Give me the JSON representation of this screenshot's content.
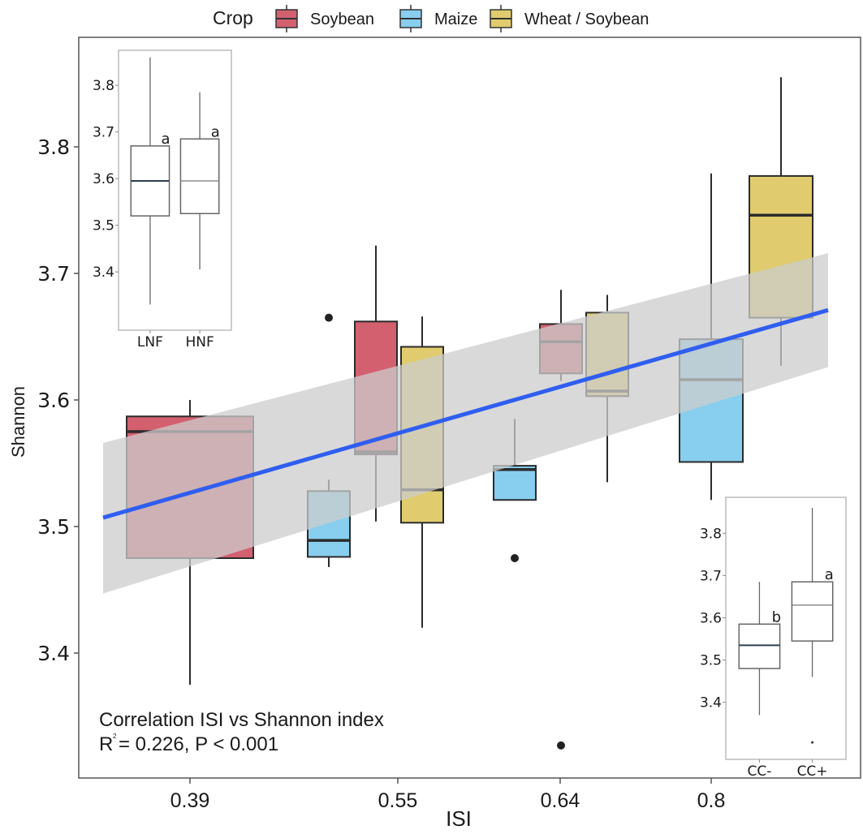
{
  "chart_data": {
    "type": "box",
    "title": "",
    "xlabel": "ISI",
    "ylabel": "Shannon",
    "ylim": [
      3.335,
      3.88
    ],
    "yticks": [
      3.4,
      3.5,
      3.6,
      3.7,
      3.8
    ],
    "ytick_labels": [
      "3.4",
      "3.5",
      "3.6",
      "3.7",
      "3.8"
    ],
    "categories": [
      "0.39",
      "0.55",
      "0.64",
      "0.8"
    ],
    "grid": false,
    "legend": {
      "title": "Crop",
      "placement": "top",
      "entries": [
        {
          "name": "Soybean",
          "color": "#d3606f"
        },
        {
          "name": "Maize",
          "color": "#87ceef"
        },
        {
          "name": "Wheat/Soybean",
          "color": "#e0cc6e"
        }
      ]
    },
    "boxes": [
      {
        "category": "0.39",
        "crop": "Soybean",
        "offset": 0,
        "width": "wide",
        "whisker_low": 3.375,
        "q1": 3.475,
        "median": 3.575,
        "q3": 3.587,
        "whisker_high": 3.6,
        "outliers": []
      },
      {
        "category": "0.55",
        "crop": "Maize",
        "offset": -1,
        "whisker_low": 3.468,
        "q1": 3.476,
        "median": 3.489,
        "q3": 3.528,
        "whisker_high": 3.537,
        "outliers": []
      },
      {
        "category": "0.55",
        "crop": "Soybean",
        "offset": 0,
        "whisker_low": 3.504,
        "q1": 3.557,
        "median": 3.559,
        "q3": 3.662,
        "whisker_high": 3.722,
        "outliers": [
          3.665
        ]
      },
      {
        "category": "0.55",
        "crop": "Wheat/Soybean",
        "offset": 1,
        "whisker_low": 3.42,
        "q1": 3.503,
        "median": 3.529,
        "q3": 3.642,
        "whisker_high": 3.666,
        "outliers": []
      },
      {
        "category": "0.64",
        "crop": "Maize",
        "offset": -1,
        "whisker_low": 3.521,
        "q1": 3.521,
        "median": 3.545,
        "q3": 3.548,
        "whisker_high": 3.585,
        "outliers": [
          3.475
        ]
      },
      {
        "category": "0.64",
        "crop": "Soybean",
        "offset": 0,
        "whisker_low": 3.615,
        "q1": 3.621,
        "median": 3.646,
        "q3": 3.66,
        "whisker_high": 3.687,
        "outliers": [
          3.327
        ]
      },
      {
        "category": "0.64",
        "crop": "Wheat/Soybean",
        "offset": 1,
        "whisker_low": 3.535,
        "q1": 3.603,
        "median": 3.607,
        "q3": 3.669,
        "whisker_high": 3.683,
        "outliers": []
      },
      {
        "category": "0.8",
        "crop": "Maize",
        "offset": 0,
        "whisker_low": 3.521,
        "q1": 3.551,
        "median": 3.616,
        "q3": 3.648,
        "whisker_high": 3.779,
        "outliers": []
      },
      {
        "category": "0.8",
        "crop": "Wheat/Soybean",
        "offset": 1,
        "whisker_low": 3.627,
        "q1": 3.665,
        "median": 3.746,
        "q3": 3.777,
        "whisker_high": 3.855,
        "outliers": []
      }
    ],
    "regression": {
      "color": "#2f5ef0",
      "x_range_isi": [
        0.32,
        0.86
      ],
      "line": [
        [
          0.32,
          3.507
        ],
        [
          0.86,
          3.671
        ]
      ],
      "ci_lower": [
        [
          0.32,
          3.447
        ],
        [
          0.86,
          3.626
        ]
      ],
      "ci_upper": [
        [
          0.32,
          3.566
        ],
        [
          0.86,
          3.716
        ]
      ],
      "ci_color": "#cccccc"
    },
    "annotation": {
      "line1": "Correlation ISI vs Shannon index",
      "r_label": "R",
      "r_superscript": "2",
      "line2_rest": "= 0.226, P < 0.001"
    },
    "insets": [
      {
        "name": "nitrogen-fertilization",
        "placement": "top-left",
        "ylim": [
          3.275,
          3.875
        ],
        "yticks": [
          "3.4",
          "3.5",
          "3.6",
          "3.7",
          "3.8"
        ],
        "yticks_values": [
          3.4,
          3.5,
          3.6,
          3.7,
          3.8
        ],
        "boxes": [
          {
            "label": "LNF",
            "whisker_low": 3.33,
            "q1": 3.52,
            "median": 3.595,
            "q3": 3.67,
            "whisker_high": 3.86,
            "letter": "a"
          },
          {
            "label": "HNF",
            "whisker_low": 3.405,
            "q1": 3.525,
            "median": 3.595,
            "q3": 3.685,
            "whisker_high": 3.785,
            "letter": "a"
          }
        ]
      },
      {
        "name": "cover-crop",
        "placement": "bottom-right",
        "ylim": [
          3.265,
          3.885
        ],
        "yticks": [
          "3.4",
          "3.5",
          "3.6",
          "3.7",
          "3.8"
        ],
        "yticks_values": [
          3.4,
          3.5,
          3.6,
          3.7,
          3.8
        ],
        "boxes": [
          {
            "label": "CC-",
            "whisker_low": 3.37,
            "q1": 3.48,
            "median": 3.535,
            "q3": 3.585,
            "whisker_high": 3.685,
            "letter": "b",
            "outliers": []
          },
          {
            "label": "CC+",
            "whisker_low": 3.46,
            "q1": 3.545,
            "median": 3.63,
            "q3": 3.685,
            "whisker_high": 3.86,
            "letter": "a",
            "outliers": [
              3.305
            ]
          }
        ]
      }
    ]
  }
}
